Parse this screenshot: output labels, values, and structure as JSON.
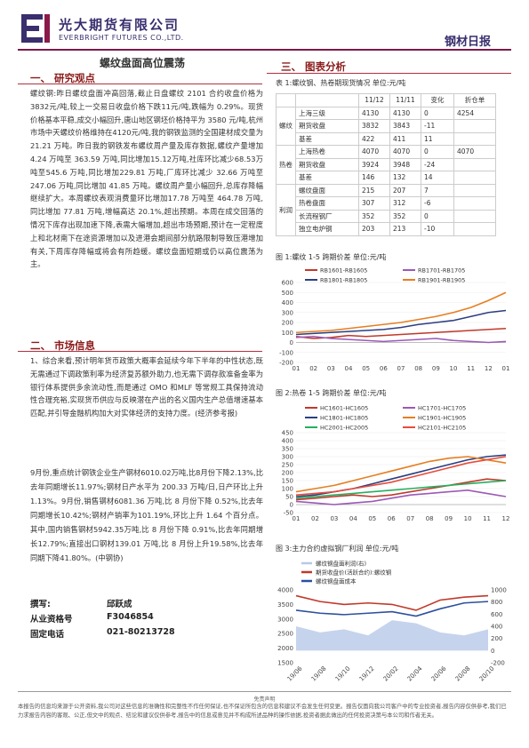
{
  "header": {
    "company_cn": "光大期货有限公司",
    "company_en": "EVERBRIGHT FUTURES CO.,LTD.",
    "report_name": "钢材日报"
  },
  "title": "螺纹盘面高位震荡",
  "section1": {
    "heading": "一、  研究观点",
    "paragraph": "螺纹钢:昨日螺纹盘面冲高回落,截止日盘螺纹 2101 合约收盘价格为3832元/吨,较上一交易日收盘价格下跌11元/吨,跌幅为 0.29%。现货价格基本平稳,成交小幅回升,唐山地区钢坯价格持平为 3580 元/吨,杭州市场中天螺纹价格维持在4120元/吨,我的钢铁监测的全国建材成交量为 21.21 万吨。昨日我的钢铁发布螺纹周产量及库存数据,螺纹产量增加 4.24 万吨至 363.59 万吨,同比增加15.12万吨,社库环比减少68.53万吨至545.6 万吨,同比增加229.81 万吨,厂库环比减少 32.66 万吨至 247.06 万吨,同比增加 41.85 万吨。螺纹周产量小幅回升,总库存降幅继续扩大。本周螺纹表观消费量环比增加17.78 万吨至 464.78 万吨,同比增加 77.81 万吨,增幅高达 20.1%,超出预期。本周在成交回落的情况下库存出现加速下降,表需大幅增加,超出市场预期,预计在一定程度上和北材南下在途资源增加以及进港会期间部分航路限制导致压港增加有关,下周库存降幅或将会有所趋缓。螺纹盘面短期或仍以高位震荡为主。"
  },
  "section2": {
    "heading": "二、  市场信息",
    "item1": "1、综合来看,预计明年货币政策大概率会延续今年下半年的中性状态,既无需通过下调政策利率为经济复苏额外助力,也无需下调存款准备金率为银行体系提供多余流动性,而是通过 OMO 和MLF 等常规工具保持流动性合理充裕,实现货币供应与反映潜在产出的名义国内生产总值增速基本匹配,并引导金融机构加大对实体经济的支持力度。(经济参考报)",
    "item2": "9月份,重点统计钢铁企业生产钢材6010.02万吨,比8月份下降2.13%,比去年同期增长11.97%;钢材日产水平为 200.33 万吨/日,日产环比上升 1.13%。9月份,销售钢材6081.36 万吨,比 8 月份下降 0.52%,比去年同期增长10.42%;钢材产销率为101.19%,环比上升 1.64 个百分点。其中,国内销售钢材5942.35万吨,比 8 月份下降 0.91%,比去年同期增长12.79%;直接出口钢材139.01 万吨,比 8 月份上升19.58%,比去年同期下降41.80%。(中钢协)"
  },
  "author": {
    "write_label": "撰写:",
    "write_value": "邱跃成",
    "cert_label": "从业资格号",
    "cert_value": "F3046854",
    "phone_label": "固定电话",
    "phone_value": "021-80213728"
  },
  "section3": {
    "heading": "三、  图表分析",
    "table_caption": "表 1:螺纹钢、热卷期现货情况   单位:元/吨",
    "table_headers": [
      "",
      "",
      "11/12",
      "11/11",
      "变化",
      "折仓单"
    ],
    "table_rows": [
      {
        "group": "螺纹",
        "name": "上海三级",
        "a": "4130",
        "b": "4130",
        "chg": "0",
        "wh": "4254"
      },
      {
        "group": "",
        "name": "期货收盘",
        "a": "3832",
        "b": "3843",
        "chg": "-11",
        "wh": ""
      },
      {
        "group": "",
        "name": "基差",
        "a": "422",
        "b": "411",
        "chg": "11",
        "wh": ""
      },
      {
        "group": "热卷",
        "name": "上海热卷",
        "a": "4070",
        "b": "4070",
        "chg": "0",
        "wh": "4070"
      },
      {
        "group": "",
        "name": "期货收盘",
        "a": "3924",
        "b": "3948",
        "chg": "-24",
        "wh": ""
      },
      {
        "group": "",
        "name": "基差",
        "a": "146",
        "b": "132",
        "chg": "14",
        "wh": ""
      },
      {
        "group": "利润",
        "name": "螺纹盘面",
        "a": "215",
        "b": "207",
        "chg": "7",
        "wh": ""
      },
      {
        "group": "",
        "name": "热卷盘面",
        "a": "307",
        "b": "312",
        "chg": "-6",
        "wh": ""
      },
      {
        "group": "",
        "name": "长流程钢厂",
        "a": "352",
        "b": "352",
        "chg": "0",
        "wh": ""
      },
      {
        "group": "",
        "name": "独立电炉钢",
        "a": "203",
        "b": "213",
        "chg": "-10",
        "wh": ""
      }
    ]
  },
  "chart_data": [
    {
      "type": "line",
      "title": "图 1:螺纹 1-5 跨期价差 单位:元/吨",
      "x": [
        "01",
        "02",
        "03",
        "04",
        "05",
        "06",
        "07",
        "08",
        "09",
        "10",
        "11",
        "12",
        "01"
      ],
      "ylim": [
        -200,
        600
      ],
      "yticks": [
        "600",
        "500",
        "400",
        "300",
        "200",
        "100",
        "0",
        "-100",
        "-200"
      ],
      "series": [
        {
          "name": "RB1601-RB1605",
          "color": "#c0392b",
          "values": [
            60,
            40,
            50,
            70,
            60,
            70,
            80,
            90,
            100,
            110,
            120,
            130,
            140
          ]
        },
        {
          "name": "RB1701-RB1705",
          "color": "#9b59b6",
          "values": [
            50,
            60,
            40,
            30,
            20,
            10,
            20,
            30,
            40,
            20,
            10,
            0,
            10
          ]
        },
        {
          "name": "RB1801-RB1805",
          "color": "#2c3e80",
          "values": [
            80,
            90,
            100,
            110,
            120,
            130,
            150,
            180,
            200,
            220,
            260,
            300,
            320
          ]
        },
        {
          "name": "RB1901-RB1905",
          "color": "#e67e22",
          "values": [
            100,
            110,
            120,
            140,
            160,
            180,
            200,
            230,
            260,
            300,
            350,
            420,
            500
          ]
        }
      ]
    },
    {
      "type": "line",
      "title": "图 2:热卷 1-5 跨期价差 单位:元/吨",
      "x": [
        "01",
        "02",
        "03",
        "04",
        "05",
        "06",
        "07",
        "08",
        "09",
        "10",
        "11",
        "12"
      ],
      "ylim": [
        -50,
        450
      ],
      "yticks": [
        "450",
        "400",
        "350",
        "300",
        "250",
        "200",
        "150",
        "100",
        "50",
        "0",
        "-50"
      ],
      "series": [
        {
          "name": "HC1601-HC1605",
          "color": "#c0392b",
          "values": [
            30,
            40,
            50,
            60,
            50,
            60,
            80,
            100,
            120,
            140,
            160,
            150
          ]
        },
        {
          "name": "HC1701-HC1705",
          "color": "#9b59b6",
          "values": [
            20,
            10,
            0,
            10,
            20,
            40,
            60,
            70,
            80,
            90,
            70,
            50
          ]
        },
        {
          "name": "HC1801-HC1805",
          "color": "#2c3e80",
          "values": [
            50,
            60,
            80,
            100,
            130,
            160,
            190,
            220,
            250,
            280,
            300,
            310
          ]
        },
        {
          "name": "HC1901-HC1905",
          "color": "#e67e22",
          "values": [
            80,
            100,
            120,
            150,
            180,
            210,
            240,
            270,
            290,
            300,
            280,
            260
          ]
        },
        {
          "name": "HC2001-HC2005",
          "color": "#27ae60",
          "values": [
            40,
            50,
            60,
            70,
            80,
            90,
            100,
            110,
            120,
            130,
            140,
            150
          ]
        },
        {
          "name": "HC2101-HC2105",
          "color": "#e74c3c",
          "values": [
            60,
            70,
            80,
            100,
            120,
            140,
            170,
            200,
            230,
            260,
            280,
            300
          ]
        }
      ]
    },
    {
      "type": "line",
      "title": "图 3:主力合约虚拟钢厂利润 单位:元/吨",
      "x": [
        "19/06",
        "19/08",
        "19/10",
        "19/12",
        "20/02",
        "20/04",
        "20/06",
        "20/08",
        "20/10"
      ],
      "ylim_left": [
        1500,
        4000
      ],
      "ylim_right": [
        -200,
        1000
      ],
      "yticks_left": [
        "4000",
        "3500",
        "3000",
        "2500",
        "2000",
        "1500"
      ],
      "yticks_right": [
        "1000",
        "800",
        "600",
        "400",
        "200",
        "0",
        "-200"
      ],
      "series": [
        {
          "name": "螺纹钢盘面利润(右)",
          "color": "#b8c8e8",
          "axis": "right",
          "values": [
            400,
            300,
            350,
            250,
            500,
            450,
            300,
            250,
            350
          ]
        },
        {
          "name": "期货收盘价(活跃合约):螺纹钢",
          "color": "#c0392b",
          "axis": "left",
          "values": [
            3800,
            3600,
            3500,
            3550,
            3500,
            3300,
            3650,
            3750,
            3800
          ]
        },
        {
          "name": "螺纹钢盘面成本",
          "color": "#2c4f9e",
          "axis": "left",
          "values": [
            3300,
            3200,
            3150,
            3200,
            3250,
            3100,
            3350,
            3550,
            3600
          ]
        }
      ]
    }
  ],
  "footer": {
    "title": "免责声明",
    "text": "本报告的信息均来源于公开资料,我公司对这些信息的准确性和完整性不作任何保证,也不保证所包含的信息和建议不会发生任何变更。报告仅面向我公司客户中的专业投资者,报告内容仅供参考,我们已力求报告内容的客观、公正,但文中的观点、结论和建议仅供参考,报告中的信息或意见并不构成所述品种的操作依据,投资者据此做出的任何投资决策与本公司和作者无关。"
  }
}
